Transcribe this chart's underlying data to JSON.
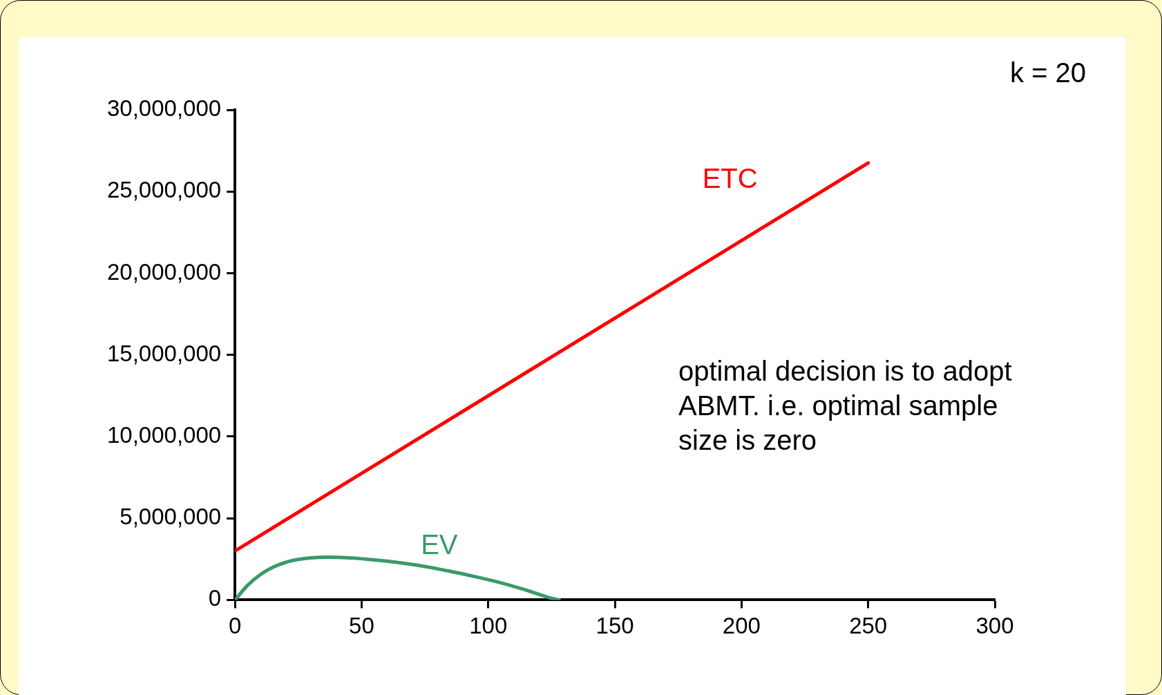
{
  "chart_data": {
    "type": "line",
    "xlim": [
      0,
      300
    ],
    "xticks": [
      0,
      50,
      100,
      150,
      200,
      250,
      300
    ],
    "ylim": [
      0,
      30000000
    ],
    "yticks": [
      0,
      {
        "value": 5000000,
        "label": "5,000,000"
      },
      {
        "value": 10000000,
        "label": "10,000,000"
      },
      {
        "value": 15000000,
        "label": "15,000,000"
      },
      {
        "value": 20000000,
        "label": "20,000,000"
      },
      {
        "value": 25000000,
        "label": "25,000,000"
      },
      {
        "value": 30000000,
        "label": "30,000,000"
      }
    ],
    "grid": false,
    "legend": false,
    "marker": "none",
    "line_style": "solid",
    "series": [
      {
        "name": "ETC",
        "color": "#ff0000",
        "x": [
          0,
          250
        ],
        "values": [
          3000000,
          26750000
        ]
      },
      {
        "name": "EV",
        "color": "#3a9a6a",
        "x": [
          0,
          5,
          10,
          15,
          20,
          25,
          30,
          37,
          45,
          55,
          65,
          75,
          85,
          95,
          105,
          115,
          125,
          128
        ],
        "values": [
          0,
          900000,
          1550000,
          2000000,
          2300000,
          2480000,
          2580000,
          2620000,
          2580000,
          2450000,
          2280000,
          2050000,
          1750000,
          1420000,
          1050000,
          600000,
          100000,
          0
        ]
      }
    ],
    "annotations": [
      "k = 20",
      "optimal decision is to adopt ABMT. i.e. optimal sample size is zero"
    ]
  }
}
